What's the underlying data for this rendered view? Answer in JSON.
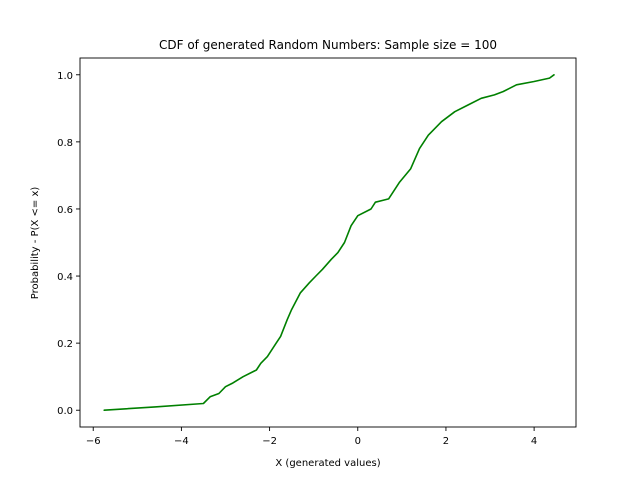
{
  "chart_data": {
    "type": "line",
    "title": "CDF of generated Random Numbers: Sample size = 100",
    "xlabel": "X (generated values)",
    "ylabel": "Probability - P(X <= x)",
    "xlim": [
      -6.3,
      4.95
    ],
    "ylim": [
      -0.05,
      1.05
    ],
    "xticks": [
      -6,
      -4,
      -2,
      0,
      2,
      4
    ],
    "xtick_labels": [
      "−6",
      "−4",
      "−2",
      "0",
      "2",
      "4"
    ],
    "yticks": [
      0.0,
      0.2,
      0.4,
      0.6,
      0.8,
      1.0
    ],
    "ytick_labels": [
      "0.0",
      "0.2",
      "0.4",
      "0.6",
      "0.8",
      "1.0"
    ],
    "grid": false,
    "series": [
      {
        "color": "#008000",
        "x": [
          -5.75,
          -4.6,
          -3.5,
          -3.35,
          -3.15,
          -3.0,
          -2.85,
          -2.6,
          -2.3,
          -2.2,
          -2.05,
          -1.85,
          -1.75,
          -1.6,
          -1.5,
          -1.3,
          -1.1,
          -0.95,
          -0.8,
          -0.6,
          -0.45,
          -0.3,
          -0.15,
          0.0,
          0.3,
          0.4,
          0.7,
          0.8,
          0.95,
          1.2,
          1.4,
          1.6,
          1.9,
          2.2,
          2.5,
          2.8,
          3.1,
          3.3,
          3.6,
          4.0,
          4.35,
          4.45
        ],
        "y": [
          0.0,
          0.01,
          0.02,
          0.04,
          0.05,
          0.07,
          0.08,
          0.1,
          0.12,
          0.14,
          0.16,
          0.2,
          0.22,
          0.27,
          0.3,
          0.35,
          0.38,
          0.4,
          0.42,
          0.45,
          0.47,
          0.5,
          0.55,
          0.58,
          0.6,
          0.62,
          0.63,
          0.65,
          0.68,
          0.72,
          0.78,
          0.82,
          0.86,
          0.89,
          0.91,
          0.93,
          0.94,
          0.95,
          0.97,
          0.98,
          0.99,
          1.0
        ]
      }
    ]
  }
}
